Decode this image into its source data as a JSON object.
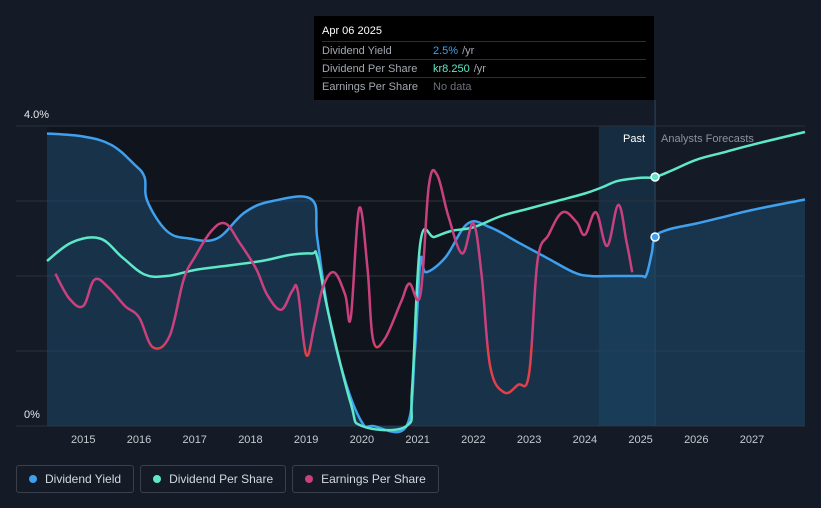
{
  "tooltip": {
    "date": "Apr 06 2025",
    "rows": [
      {
        "label": "Dividend Yield",
        "value": "2.5%",
        "unit": "/yr"
      },
      {
        "label": "Dividend Per Share",
        "value": "kr8.250",
        "unit": "/yr"
      },
      {
        "label": "Earnings Per Share",
        "value": "No data",
        "unit": ""
      }
    ]
  },
  "regions": {
    "past": "Past",
    "forecast": "Analysts Forecasts"
  },
  "legend": [
    {
      "label": "Dividend Yield",
      "color": "#3ea0ee"
    },
    {
      "label": "Dividend Per Share",
      "color": "#5fe8c8"
    },
    {
      "label": "Earnings Per Share",
      "color": "#c9407e"
    }
  ],
  "chart_data": {
    "type": "line",
    "title": "",
    "xlabel": "",
    "ylabel": "",
    "xlim": [
      2014.35,
      2027.95
    ],
    "ylim": [
      0,
      4.0
    ],
    "y_tick_labels": [
      "0%",
      "4.0%"
    ],
    "x_ticks": [
      2015,
      2016,
      2017,
      2018,
      2019,
      2020,
      2021,
      2022,
      2023,
      2024,
      2025,
      2026,
      2027
    ],
    "past_start": 2024.25,
    "today": 2025.26,
    "series": [
      {
        "name": "Dividend Yield",
        "color": "#3ea0ee",
        "fill": true,
        "points": [
          [
            2014.35,
            3.9
          ],
          [
            2015.0,
            3.86
          ],
          [
            2015.5,
            3.75
          ],
          [
            2015.9,
            3.5
          ],
          [
            2016.1,
            3.32
          ],
          [
            2016.15,
            3.0
          ],
          [
            2016.5,
            2.6
          ],
          [
            2016.9,
            2.5
          ],
          [
            2017.4,
            2.5
          ],
          [
            2017.9,
            2.85
          ],
          [
            2018.4,
            3.0
          ],
          [
            2019.1,
            3.02
          ],
          [
            2019.2,
            2.5
          ],
          [
            2019.4,
            1.5
          ],
          [
            2019.7,
            0.6
          ],
          [
            2020.0,
            0.05
          ],
          [
            2020.2,
            0
          ],
          [
            2020.8,
            0
          ],
          [
            2020.95,
            1.0
          ],
          [
            2021.05,
            2.2
          ],
          [
            2021.15,
            2.05
          ],
          [
            2021.5,
            2.25
          ],
          [
            2021.9,
            2.7
          ],
          [
            2022.3,
            2.65
          ],
          [
            2022.8,
            2.45
          ],
          [
            2023.3,
            2.25
          ],
          [
            2023.8,
            2.05
          ],
          [
            2024.1,
            2.0
          ],
          [
            2024.5,
            2.0
          ],
          [
            2025.0,
            2.0
          ],
          [
            2025.1,
            2.01
          ],
          [
            2025.2,
            2.3
          ],
          [
            2025.26,
            2.52
          ],
          [
            2025.5,
            2.62
          ],
          [
            2026.0,
            2.7
          ],
          [
            2026.5,
            2.79
          ],
          [
            2027.0,
            2.88
          ],
          [
            2027.95,
            3.02
          ]
        ]
      },
      {
        "name": "Dividend Per Share",
        "color": "#5fe8c8",
        "fill": false,
        "points": [
          [
            2014.35,
            2.2
          ],
          [
            2014.8,
            2.45
          ],
          [
            2015.3,
            2.5
          ],
          [
            2015.7,
            2.25
          ],
          [
            2016.1,
            2.02
          ],
          [
            2016.5,
            2.0
          ],
          [
            2017.0,
            2.08
          ],
          [
            2017.5,
            2.13
          ],
          [
            2018.2,
            2.2
          ],
          [
            2018.7,
            2.28
          ],
          [
            2019.1,
            2.3
          ],
          [
            2019.2,
            2.25
          ],
          [
            2019.4,
            1.5
          ],
          [
            2019.8,
            0.3
          ],
          [
            2020.0,
            0
          ],
          [
            2020.8,
            0
          ],
          [
            2020.9,
            0.5
          ],
          [
            2021.05,
            2.45
          ],
          [
            2021.3,
            2.52
          ],
          [
            2021.6,
            2.6
          ],
          [
            2022.0,
            2.65
          ],
          [
            2022.5,
            2.8
          ],
          [
            2023.0,
            2.9
          ],
          [
            2023.5,
            3.0
          ],
          [
            2024.0,
            3.1
          ],
          [
            2024.3,
            3.18
          ],
          [
            2024.6,
            3.27
          ],
          [
            2025.0,
            3.31
          ],
          [
            2025.26,
            3.32
          ],
          [
            2025.6,
            3.42
          ],
          [
            2026.0,
            3.55
          ],
          [
            2026.5,
            3.65
          ],
          [
            2027.0,
            3.75
          ],
          [
            2027.95,
            3.92
          ]
        ]
      },
      {
        "name": "Earnings Per Share",
        "color": "#c9407e",
        "fill": false,
        "points": [
          [
            2014.5,
            2.03
          ],
          [
            2014.75,
            1.7
          ],
          [
            2015.0,
            1.6
          ],
          [
            2015.2,
            1.95
          ],
          [
            2015.45,
            1.85
          ],
          [
            2015.75,
            1.6
          ],
          [
            2016.0,
            1.45
          ],
          [
            2016.25,
            1.05
          ],
          [
            2016.55,
            1.2
          ],
          [
            2016.8,
            1.95
          ],
          [
            2017.0,
            2.25
          ],
          [
            2017.3,
            2.6
          ],
          [
            2017.55,
            2.7
          ],
          [
            2017.8,
            2.45
          ],
          [
            2018.1,
            2.1
          ],
          [
            2018.3,
            1.75
          ],
          [
            2018.55,
            1.55
          ],
          [
            2018.75,
            1.8
          ],
          [
            2018.85,
            1.8
          ],
          [
            2019.0,
            0.95
          ],
          [
            2019.15,
            1.35
          ],
          [
            2019.3,
            1.85
          ],
          [
            2019.5,
            2.05
          ],
          [
            2019.7,
            1.75
          ],
          [
            2019.8,
            1.45
          ],
          [
            2019.95,
            2.9
          ],
          [
            2020.1,
            2.1
          ],
          [
            2020.2,
            1.15
          ],
          [
            2020.4,
            1.15
          ],
          [
            2020.7,
            1.65
          ],
          [
            2020.85,
            1.9
          ],
          [
            2021.05,
            1.75
          ],
          [
            2021.2,
            3.2
          ],
          [
            2021.35,
            3.35
          ],
          [
            2021.55,
            2.8
          ],
          [
            2021.8,
            2.3
          ],
          [
            2022.0,
            2.7
          ],
          [
            2022.15,
            2.0
          ],
          [
            2022.3,
            0.8
          ],
          [
            2022.55,
            0.45
          ],
          [
            2022.8,
            0.55
          ],
          [
            2023.0,
            0.7
          ],
          [
            2023.15,
            2.2
          ],
          [
            2023.35,
            2.55
          ],
          [
            2023.6,
            2.85
          ],
          [
            2023.85,
            2.72
          ],
          [
            2024.0,
            2.55
          ],
          [
            2024.2,
            2.85
          ],
          [
            2024.4,
            2.4
          ],
          [
            2024.6,
            2.95
          ],
          [
            2024.75,
            2.45
          ],
          [
            2024.85,
            2.05
          ]
        ]
      }
    ]
  }
}
